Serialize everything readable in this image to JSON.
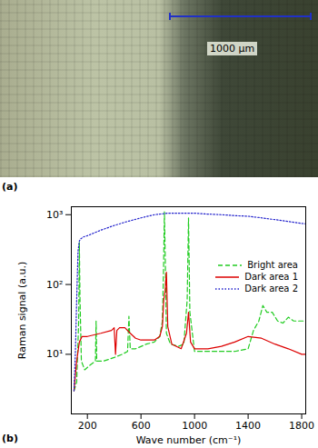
{
  "image_panel": {
    "label": "(a)",
    "scale_bar_label": "1000 µm"
  },
  "chart_data": {
    "type": "line",
    "panel_label": "(b)",
    "x_label": "Wave number (cm⁻¹)",
    "y_label": "Raman signal (a.u.)",
    "log": "y",
    "grid": false,
    "legend": "top-right",
    "xlim": [
      80,
      1830
    ],
    "xticks": [
      200,
      600,
      1000,
      1400,
      1800
    ],
    "ylim": [
      1.4,
      1300
    ],
    "yticks": [
      {
        "value": 10,
        "label": "10¹"
      },
      {
        "value": 100,
        "label": "10²"
      },
      {
        "value": 1000,
        "label": "10³"
      }
    ],
    "series": [
      {
        "name": "Bright area",
        "color": "#22cc22",
        "line_style": "dashed",
        "x": [
          100,
          120,
          135,
          140,
          145,
          155,
          180,
          220,
          260,
          265,
          270,
          320,
          400,
          460,
          500,
          510,
          520,
          560,
          640,
          700,
          740,
          760,
          768,
          775,
          782,
          790,
          820,
          880,
          920,
          945,
          955,
          965,
          1000,
          1100,
          1200,
          1300,
          1400,
          1440,
          1480,
          1510,
          1540,
          1580,
          1620,
          1660,
          1700,
          1740,
          1800,
          1830
        ],
        "values": [
          3,
          4,
          30,
          400,
          60,
          8,
          6,
          7,
          8,
          30,
          8,
          8,
          9,
          10,
          11,
          35,
          12,
          12,
          14,
          15,
          18,
          30,
          150,
          1100,
          200,
          20,
          14,
          13,
          14,
          60,
          900,
          40,
          11,
          11,
          11,
          11,
          12,
          22,
          30,
          50,
          40,
          40,
          30,
          28,
          34,
          30,
          30,
          30
        ]
      },
      {
        "name": "Dark area 1",
        "color": "#dd0000",
        "line_style": "solid",
        "x": [
          100,
          120,
          140,
          160,
          200,
          300,
          380,
          400,
          410,
          420,
          440,
          480,
          520,
          560,
          600,
          700,
          740,
          760,
          770,
          780,
          790,
          800,
          830,
          900,
          940,
          955,
          970,
          1000,
          1100,
          1200,
          1300,
          1400,
          1500,
          1600,
          1700,
          1800,
          1830
        ],
        "values": [
          3,
          8,
          15,
          18,
          18,
          20,
          22,
          24,
          10,
          22,
          24,
          24,
          20,
          17,
          16,
          16,
          18,
          25,
          60,
          80,
          150,
          25,
          14,
          12,
          20,
          40,
          15,
          12,
          12,
          13,
          15,
          18,
          17,
          14,
          12,
          10,
          10
        ]
      },
      {
        "name": "Dark area 2",
        "color": "#2222cc",
        "line_style": "dotted",
        "x": [
          100,
          110,
          120,
          130,
          140,
          150,
          170,
          200,
          300,
          400,
          500,
          600,
          700,
          800,
          900,
          1000,
          1100,
          1200,
          1300,
          1400,
          1500,
          1600,
          1700,
          1800,
          1830
        ],
        "values": [
          3,
          10,
          60,
          300,
          420,
          450,
          480,
          500,
          600,
          700,
          800,
          900,
          1000,
          1050,
          1050,
          1050,
          1020,
          1000,
          970,
          950,
          900,
          850,
          800,
          750,
          740
        ]
      }
    ]
  }
}
